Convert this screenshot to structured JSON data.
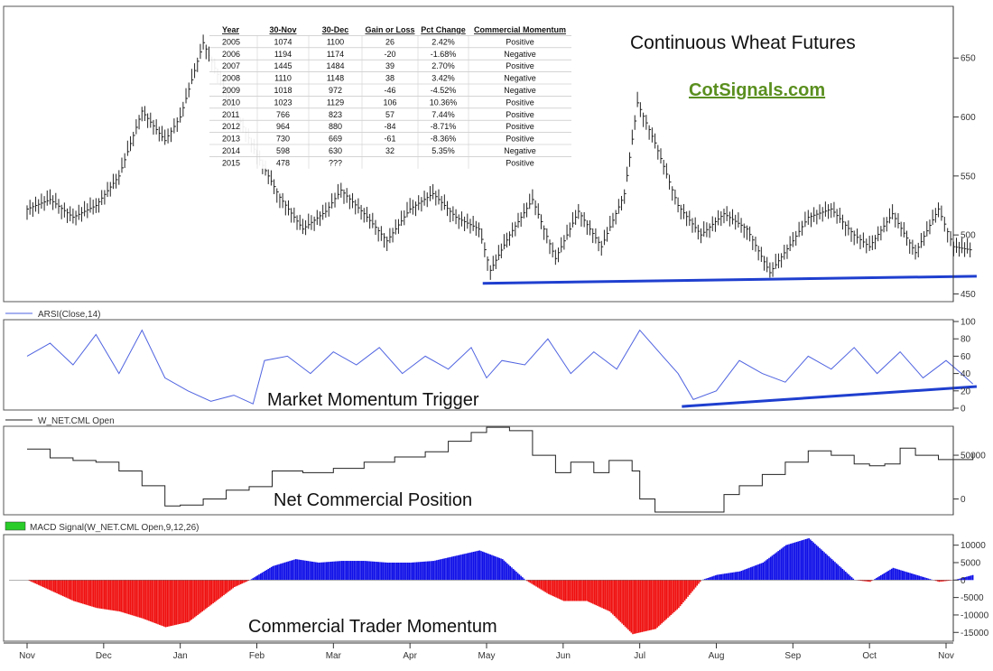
{
  "colors": {
    "price_bars": "#222222",
    "trend_line": "#1f3fcf",
    "rsi_line": "#4f63e0",
    "net_line": "#222222",
    "macd_pos": "#1010e8",
    "macd_neg": "#f01010",
    "brand": "#5a8f1f",
    "legend_swatch": "#29cc29"
  },
  "labels": {
    "title": "Continuous Wheat Futures",
    "brand": "CotSignals.com",
    "rsi_legend": "ARSI(Close,14)",
    "net_legend": "W_NET.CML Open",
    "macd_legend": "MACD Signal(W_NET.CML Open,9,12,26)",
    "rsi_overlay": "Market Momentum Trigger",
    "net_overlay": "Net Commercial Position",
    "macd_overlay": "Commercial Trader Momentum"
  },
  "table": {
    "headers": [
      "Year",
      "30-Nov",
      "30-Dec",
      "Gain or Loss",
      "Pct Change",
      "Commercial Momentum"
    ],
    "rows": [
      [
        "2005",
        "1074",
        "1100",
        "26",
        "2.42%",
        "Positive"
      ],
      [
        "2006",
        "1194",
        "1174",
        "-20",
        "-1.68%",
        "Negative"
      ],
      [
        "2007",
        "1445",
        "1484",
        "39",
        "2.70%",
        "Positive"
      ],
      [
        "2008",
        "1110",
        "1148",
        "38",
        "3.42%",
        "Negative"
      ],
      [
        "2009",
        "1018",
        "972",
        "-46",
        "-4.52%",
        "Negative"
      ],
      [
        "2010",
        "1023",
        "1129",
        "106",
        "10.36%",
        "Positive"
      ],
      [
        "2011",
        "766",
        "823",
        "57",
        "7.44%",
        "Positive"
      ],
      [
        "2012",
        "964",
        "880",
        "-84",
        "-8.71%",
        "Positive"
      ],
      [
        "2013",
        "730",
        "669",
        "-61",
        "-8.36%",
        "Positive"
      ],
      [
        "2014",
        "598",
        "630",
        "32",
        "5.35%",
        "Negative"
      ],
      [
        "2015",
        "478",
        "???",
        "",
        "",
        "Positive"
      ]
    ]
  },
  "chart_data": [
    {
      "type": "line",
      "name": "price",
      "x_labels": [
        "Nov",
        "Dec",
        "Jan",
        "Feb",
        "Mar",
        "Apr",
        "May",
        "Jun",
        "Jul",
        "Aug",
        "Sep",
        "Oct",
        "Nov"
      ],
      "y_ticks": [
        450,
        500,
        550,
        600,
        650
      ],
      "ylim": [
        445,
        690
      ],
      "x": [
        0,
        0.3,
        0.6,
        0.9,
        1.2,
        1.5,
        1.8,
        2.0,
        2.3,
        2.6,
        3.0,
        3.3,
        3.6,
        3.9,
        4.1,
        4.4,
        4.7,
        5.0,
        5.3,
        5.6,
        5.9,
        6.05,
        6.3,
        6.6,
        6.9,
        7.2,
        7.5,
        7.8,
        7.97,
        8.2,
        8.5,
        8.8,
        9.1,
        9.4,
        9.7,
        10.0,
        10.2,
        10.5,
        10.8,
        11.0,
        11.3,
        11.6,
        11.9,
        12.1,
        12.35
      ],
      "values": [
        522,
        530,
        515,
        525,
        550,
        605,
        580,
        600,
        663,
        620,
        568,
        532,
        505,
        520,
        538,
        518,
        495,
        522,
        535,
        515,
        505,
        470,
        500,
        530,
        480,
        520,
        490,
        535,
        612,
        578,
        525,
        500,
        518,
        505,
        468,
        495,
        515,
        522,
        500,
        490,
        518,
        485,
        522,
        490,
        487
      ]
    },
    {
      "type": "line",
      "name": "trendline",
      "x": [
        5.95,
        12.4
      ],
      "values": [
        459,
        465
      ]
    },
    {
      "type": "line",
      "name": "ARSI(Close,14)",
      "y_ticks": [
        0,
        20,
        40,
        60,
        80,
        100
      ],
      "ylim": [
        0,
        100
      ],
      "x": [
        0,
        0.3,
        0.6,
        0.9,
        1.2,
        1.5,
        1.8,
        2.1,
        2.4,
        2.7,
        2.95,
        3.1,
        3.4,
        3.7,
        4.0,
        4.3,
        4.6,
        4.9,
        5.2,
        5.5,
        5.8,
        6.0,
        6.2,
        6.5,
        6.8,
        7.1,
        7.4,
        7.7,
        8.0,
        8.3,
        8.5,
        8.7,
        9.0,
        9.3,
        9.6,
        9.9,
        10.2,
        10.5,
        10.8,
        11.1,
        11.4,
        11.7,
        12.0,
        12.2,
        12.35
      ],
      "values": [
        60,
        75,
        50,
        85,
        40,
        90,
        35,
        20,
        8,
        15,
        5,
        55,
        60,
        40,
        65,
        50,
        70,
        40,
        60,
        45,
        70,
        35,
        55,
        50,
        80,
        40,
        65,
        45,
        90,
        60,
        40,
        10,
        20,
        55,
        40,
        30,
        60,
        45,
        70,
        40,
        65,
        35,
        55,
        40,
        28
      ]
    },
    {
      "type": "line",
      "name": "trendline",
      "x": [
        8.55,
        12.4
      ],
      "values": [
        2,
        25
      ]
    },
    {
      "type": "line",
      "name": "W_NET.CML Open",
      "y_ticks": [
        0,
        50000
      ],
      "ylim": [
        -15000,
        80000
      ],
      "x": [
        0,
        0.3,
        0.6,
        0.9,
        1.2,
        1.5,
        1.8,
        2.0,
        2.3,
        2.6,
        2.9,
        3.2,
        3.6,
        4.0,
        4.4,
        4.8,
        5.2,
        5.5,
        5.8,
        6.0,
        6.3,
        6.6,
        6.9,
        7.1,
        7.4,
        7.6,
        7.9,
        8.0,
        8.2,
        8.4,
        8.7,
        8.9,
        9.1,
        9.3,
        9.6,
        9.9,
        10.2,
        10.5,
        10.8,
        11.0,
        11.2,
        11.4,
        11.6,
        11.9,
        12.35
      ],
      "values": [
        57000,
        47000,
        44000,
        42000,
        32000,
        15000,
        -8000,
        -7000,
        0,
        10000,
        14000,
        32000,
        30000,
        35000,
        42000,
        48000,
        54000,
        66000,
        76000,
        82000,
        78000,
        50000,
        30000,
        42000,
        30000,
        44000,
        32000,
        0,
        -15000,
        -15000,
        -15000,
        -15000,
        5000,
        15000,
        28000,
        42000,
        55000,
        50000,
        40000,
        38000,
        40000,
        58000,
        50000,
        45000,
        52000
      ]
    },
    {
      "type": "area",
      "name": "MACD Signal(W_NET.CML Open,9,12,26)",
      "y_ticks": [
        -15000,
        -10000,
        -5000,
        0,
        5000,
        10000
      ],
      "ylim": [
        -17000,
        12500
      ],
      "x": [
        0,
        0.3,
        0.6,
        0.9,
        1.2,
        1.5,
        1.8,
        2.1,
        2.4,
        2.7,
        2.9,
        3.2,
        3.5,
        3.8,
        4.1,
        4.4,
        4.7,
        5.0,
        5.3,
        5.6,
        5.9,
        6.2,
        6.5,
        6.8,
        7.0,
        7.3,
        7.6,
        7.9,
        8.2,
        8.5,
        8.8,
        9.0,
        9.3,
        9.6,
        9.9,
        10.2,
        10.5,
        10.8,
        11.0,
        11.3,
        11.6,
        11.9,
        12.1,
        12.35
      ],
      "values": [
        0,
        -3000,
        -6000,
        -8000,
        -9000,
        -11000,
        -13500,
        -12000,
        -7000,
        -2000,
        0,
        4000,
        6000,
        5000,
        5500,
        5500,
        5000,
        5000,
        5500,
        7000,
        8500,
        6000,
        0,
        -4000,
        -6000,
        -6000,
        -9000,
        -15500,
        -14000,
        -8000,
        0,
        1500,
        2500,
        5000,
        10000,
        12000,
        6000,
        0,
        -500,
        3500,
        1500,
        -500,
        0,
        1500
      ]
    }
  ]
}
